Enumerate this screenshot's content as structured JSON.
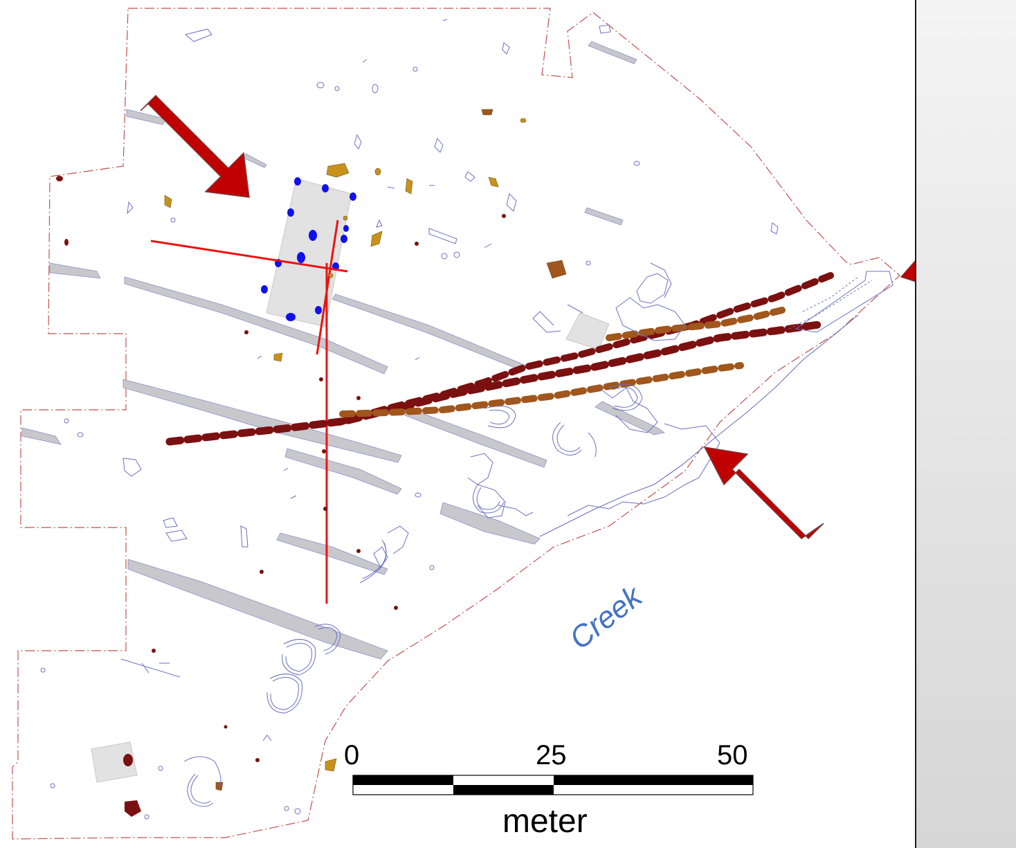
{
  "map": {
    "water_label": "Creek",
    "scale_bar": {
      "ticks": [
        "0",
        "25",
        "50"
      ],
      "unit": "meter"
    }
  },
  "colors": {
    "boundary": "#c0504d",
    "feature_outline": "#6a6fc0",
    "ditch_fill": "#c8c8cc",
    "palisade_dark": "#7b1010",
    "palisade_brown": "#a0561c",
    "pit_ochre": "#c8921a",
    "posthole_blue": "#1010ee",
    "house_fill": "#e2e2e2",
    "section_line": "#ee1111",
    "arrow": "#c00000",
    "creek_text": "#4472c4"
  },
  "icons": {
    "arrows": [
      "arrow-icon-northwest",
      "arrow-icon-east",
      "arrow-icon-southeast"
    ]
  }
}
